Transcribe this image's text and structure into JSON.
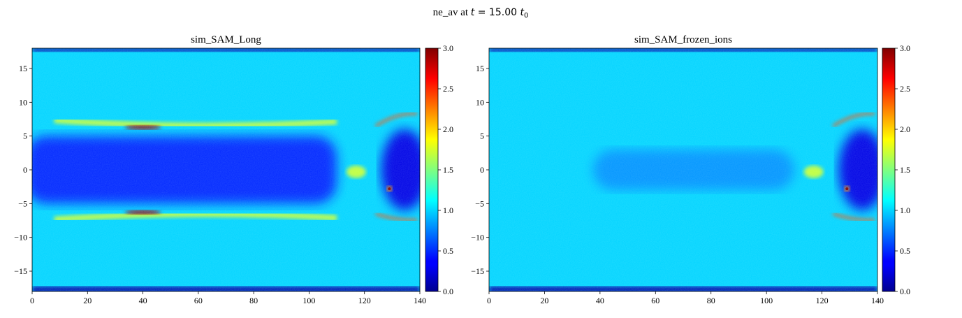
{
  "figure": {
    "suptitle_prefix": "ne_av at ",
    "suptitle_math_t": "t",
    "suptitle_math_eq": " = 15.00 ",
    "suptitle_math_t0": "t",
    "suptitle_math_sub": "0"
  },
  "chart_data": [
    {
      "type": "heatmap",
      "title": "sim_SAM_Long",
      "xlabel": "",
      "ylabel": "",
      "xlim": [
        0,
        140
      ],
      "ylim": [
        -18,
        18
      ],
      "x_ticks": [
        "0",
        "20",
        "40",
        "60",
        "80",
        "100",
        "120",
        "140"
      ],
      "x_tick_values": [
        0,
        20,
        40,
        60,
        80,
        100,
        120,
        140
      ],
      "y_ticks": [
        "15",
        "10",
        "5",
        "0",
        "−5",
        "−10",
        "−15"
      ],
      "y_tick_values": [
        15,
        10,
        5,
        0,
        -5,
        -10,
        -15
      ],
      "colormap": "jet",
      "colorbar": {
        "range": [
          0,
          3.0
        ],
        "ticks": [
          "0.0",
          "0.5",
          "1.0",
          "1.5",
          "2.0",
          "2.5",
          "3.0"
        ],
        "tick_values": [
          0,
          0.5,
          1.0,
          1.5,
          2.0,
          2.5,
          3.0
        ]
      },
      "features": {
        "background_level": 1.0,
        "central_cavity": {
          "x_range": [
            0,
            110
          ],
          "y_range": [
            -5,
            5
          ],
          "level": 0.45
        },
        "upper_filament": {
          "y": 6.3,
          "x_range": [
            8,
            110
          ],
          "peak_x": 40,
          "peak_level": 2.9
        },
        "lower_filament": {
          "y": -6.3,
          "x_range": [
            8,
            110
          ],
          "peak_x": 40,
          "peak_level": 2.9
        },
        "rear_cavity": {
          "x_range": [
            126,
            140
          ],
          "y_range": [
            -6,
            6
          ],
          "level": 0.3
        },
        "hot_spot": {
          "x": 129,
          "y": -2.8,
          "level": 3.0
        }
      }
    },
    {
      "type": "heatmap",
      "title": "sim_SAM_frozen_ions",
      "xlabel": "",
      "ylabel": "",
      "xlim": [
        0,
        140
      ],
      "ylim": [
        -18,
        18
      ],
      "x_ticks": [
        "0",
        "20",
        "40",
        "60",
        "80",
        "100",
        "120",
        "140"
      ],
      "x_tick_values": [
        0,
        20,
        40,
        60,
        80,
        100,
        120,
        140
      ],
      "y_ticks": [
        "15",
        "10",
        "5",
        "0",
        "−5",
        "−10",
        "−15"
      ],
      "y_tick_values": [
        15,
        10,
        5,
        0,
        -5,
        -10,
        -15
      ],
      "colormap": "jet",
      "colorbar": {
        "range": [
          0,
          3.0
        ],
        "ticks": [
          "0.0",
          "0.5",
          "1.0",
          "1.5",
          "2.0",
          "2.5",
          "3.0"
        ],
        "tick_values": [
          0,
          0.5,
          1.0,
          1.5,
          2.0,
          2.5,
          3.0
        ]
      },
      "features": {
        "background_level": 1.0,
        "central_cavity": {
          "x_range": [
            40,
            110
          ],
          "y_range": [
            -3,
            3
          ],
          "level": 0.8
        },
        "rear_cavity": {
          "x_range": [
            126,
            140
          ],
          "y_range": [
            -6,
            6
          ],
          "level": 0.3
        },
        "hot_spot": {
          "x": 129,
          "y": -2.8,
          "level": 3.0
        }
      }
    }
  ]
}
